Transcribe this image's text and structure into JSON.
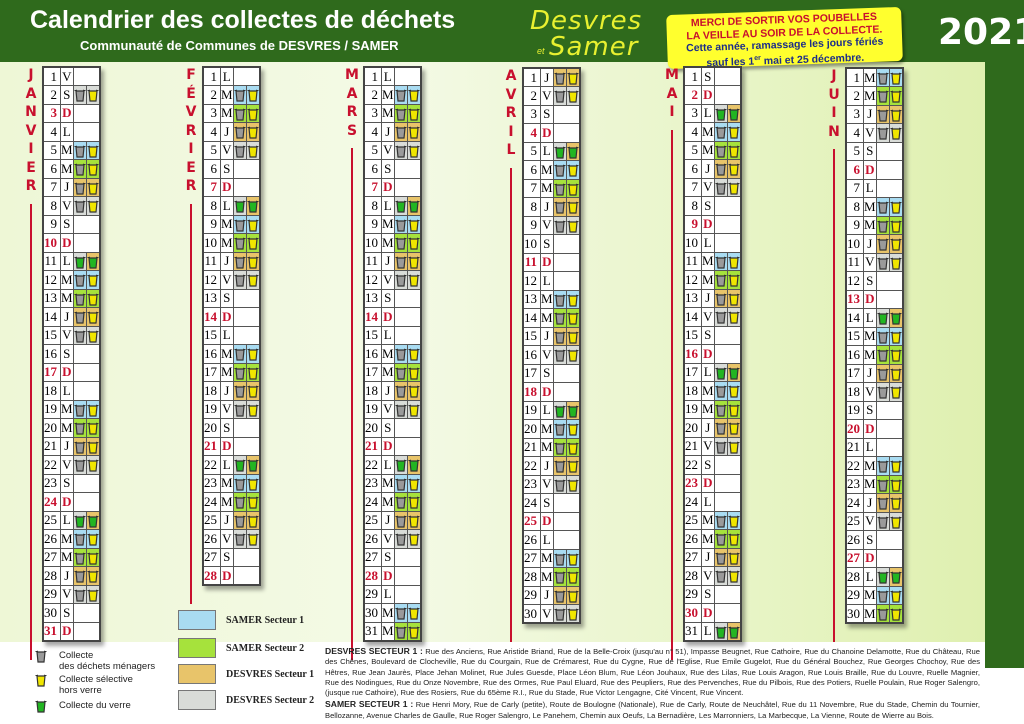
{
  "header": {
    "title": "Calendrier des collectes de déchets",
    "subtitle": "Communauté de Communes de DESVRES / SAMER",
    "logo": {
      "line1": "Desvres",
      "et": "et",
      "line2": "Samer"
    },
    "year": "2021",
    "note": {
      "line1": "MERCI DE SORTIR VOS POUBELLES",
      "line2": "LA VEILLE AU SOIR DE LA COLLECTE.",
      "line3": "Cette année, ramassage les jours fériés",
      "line4_pre": "sauf les 1",
      "line4_sup": "er",
      "line4_post": " mai et 25 décembre."
    }
  },
  "colors": {
    "s1": "#a9dcf2",
    "s2": "#a6e23c",
    "d1": "#e8c46a",
    "d2": "#d9dcd8",
    "sunday": "#c8102e",
    "bin_household": "#9a9a9a",
    "bin_selective": "#f0e600",
    "bin_glass": "#22b522"
  },
  "sector_codes": {
    "s1": "SAMER Secteur 1",
    "s2": "SAMER Secteur 2",
    "d1": "DESVRES Secteur 1",
    "d2": "DESVRES Secteur 2",
    "g": "Collecte du verre (DESVRES Secteur 2 / DESVRES Secteur 1)"
  },
  "months": [
    {
      "name": "JANVIER",
      "days": [
        [
          1,
          "V",
          ""
        ],
        [
          2,
          "S",
          "d2"
        ],
        [
          3,
          "D",
          ""
        ],
        [
          4,
          "L",
          ""
        ],
        [
          5,
          "M",
          "s1"
        ],
        [
          6,
          "M",
          "s2"
        ],
        [
          7,
          "J",
          "d1"
        ],
        [
          8,
          "V",
          "d2"
        ],
        [
          9,
          "S",
          ""
        ],
        [
          10,
          "D",
          ""
        ],
        [
          11,
          "L",
          "g"
        ],
        [
          12,
          "M",
          "s1"
        ],
        [
          13,
          "M",
          "s2"
        ],
        [
          14,
          "J",
          "d1"
        ],
        [
          15,
          "V",
          "d2"
        ],
        [
          16,
          "S",
          ""
        ],
        [
          17,
          "D",
          ""
        ],
        [
          18,
          "L",
          ""
        ],
        [
          19,
          "M",
          "s1"
        ],
        [
          20,
          "M",
          "s2"
        ],
        [
          21,
          "J",
          "d1"
        ],
        [
          22,
          "V",
          "d2"
        ],
        [
          23,
          "S",
          ""
        ],
        [
          24,
          "D",
          ""
        ],
        [
          25,
          "L",
          "g"
        ],
        [
          26,
          "M",
          "s1"
        ],
        [
          27,
          "M",
          "s2"
        ],
        [
          28,
          "J",
          "d1"
        ],
        [
          29,
          "V",
          "d2"
        ],
        [
          30,
          "S",
          ""
        ],
        [
          31,
          "D",
          ""
        ]
      ]
    },
    {
      "name": "FÉVRIER",
      "days": [
        [
          1,
          "L",
          ""
        ],
        [
          2,
          "M",
          "s1"
        ],
        [
          3,
          "M",
          "s2"
        ],
        [
          4,
          "J",
          "d1"
        ],
        [
          5,
          "V",
          "d2"
        ],
        [
          6,
          "S",
          ""
        ],
        [
          7,
          "D",
          ""
        ],
        [
          8,
          "L",
          "g"
        ],
        [
          9,
          "M",
          "s1"
        ],
        [
          10,
          "M",
          "s2"
        ],
        [
          11,
          "J",
          "d1"
        ],
        [
          12,
          "V",
          "d2"
        ],
        [
          13,
          "S",
          ""
        ],
        [
          14,
          "D",
          ""
        ],
        [
          15,
          "L",
          ""
        ],
        [
          16,
          "M",
          "s1"
        ],
        [
          17,
          "M",
          "s2"
        ],
        [
          18,
          "J",
          "d1"
        ],
        [
          19,
          "V",
          "d2"
        ],
        [
          20,
          "S",
          ""
        ],
        [
          21,
          "D",
          ""
        ],
        [
          22,
          "L",
          "g"
        ],
        [
          23,
          "M",
          "s1"
        ],
        [
          24,
          "M",
          "s2"
        ],
        [
          25,
          "J",
          "d1"
        ],
        [
          26,
          "V",
          "d2"
        ],
        [
          27,
          "S",
          ""
        ],
        [
          28,
          "D",
          ""
        ]
      ]
    },
    {
      "name": "MARS",
      "days": [
        [
          1,
          "L",
          ""
        ],
        [
          2,
          "M",
          "s1"
        ],
        [
          3,
          "M",
          "s2"
        ],
        [
          4,
          "J",
          "d1"
        ],
        [
          5,
          "V",
          "d2"
        ],
        [
          6,
          "S",
          ""
        ],
        [
          7,
          "D",
          ""
        ],
        [
          8,
          "L",
          "g"
        ],
        [
          9,
          "M",
          "s1"
        ],
        [
          10,
          "M",
          "s2"
        ],
        [
          11,
          "J",
          "d1"
        ],
        [
          12,
          "V",
          "d2"
        ],
        [
          13,
          "S",
          ""
        ],
        [
          14,
          "D",
          ""
        ],
        [
          15,
          "L",
          ""
        ],
        [
          16,
          "M",
          "s1"
        ],
        [
          17,
          "M",
          "s2"
        ],
        [
          18,
          "J",
          "d1"
        ],
        [
          19,
          "V",
          "d2"
        ],
        [
          20,
          "S",
          ""
        ],
        [
          21,
          "D",
          ""
        ],
        [
          22,
          "L",
          "g"
        ],
        [
          23,
          "M",
          "s1"
        ],
        [
          24,
          "M",
          "s2"
        ],
        [
          25,
          "J",
          "d1"
        ],
        [
          26,
          "V",
          "d2"
        ],
        [
          27,
          "S",
          ""
        ],
        [
          28,
          "D",
          ""
        ],
        [
          29,
          "L",
          ""
        ],
        [
          30,
          "M",
          "s1"
        ],
        [
          31,
          "M",
          "s2"
        ]
      ]
    },
    {
      "name": "AVRIL",
      "days": [
        [
          1,
          "J",
          "d1"
        ],
        [
          2,
          "V",
          "d2"
        ],
        [
          3,
          "S",
          ""
        ],
        [
          4,
          "D",
          ""
        ],
        [
          5,
          "L",
          "g"
        ],
        [
          6,
          "M",
          "s1"
        ],
        [
          7,
          "M",
          "s2"
        ],
        [
          8,
          "J",
          "d1"
        ],
        [
          9,
          "V",
          "d2"
        ],
        [
          10,
          "S",
          ""
        ],
        [
          11,
          "D",
          ""
        ],
        [
          12,
          "L",
          ""
        ],
        [
          13,
          "M",
          "s1"
        ],
        [
          14,
          "M",
          "s2"
        ],
        [
          15,
          "J",
          "d1"
        ],
        [
          16,
          "V",
          "d2"
        ],
        [
          17,
          "S",
          ""
        ],
        [
          18,
          "D",
          ""
        ],
        [
          19,
          "L",
          "g"
        ],
        [
          20,
          "M",
          "s1"
        ],
        [
          21,
          "M",
          "s2"
        ],
        [
          22,
          "J",
          "d1"
        ],
        [
          23,
          "V",
          "d2"
        ],
        [
          24,
          "S",
          ""
        ],
        [
          25,
          "D",
          ""
        ],
        [
          26,
          "L",
          ""
        ],
        [
          27,
          "M",
          "s1"
        ],
        [
          28,
          "M",
          "s2"
        ],
        [
          29,
          "J",
          "d1"
        ],
        [
          30,
          "V",
          "d2"
        ]
      ]
    },
    {
      "name": "MAI",
      "days": [
        [
          1,
          "S",
          ""
        ],
        [
          2,
          "D",
          ""
        ],
        [
          3,
          "L",
          "g"
        ],
        [
          4,
          "M",
          "s1"
        ],
        [
          5,
          "M",
          "s2"
        ],
        [
          6,
          "J",
          "d1"
        ],
        [
          7,
          "V",
          "d2"
        ],
        [
          8,
          "S",
          ""
        ],
        [
          9,
          "D",
          ""
        ],
        [
          10,
          "L",
          ""
        ],
        [
          11,
          "M",
          "s1"
        ],
        [
          12,
          "M",
          "s2"
        ],
        [
          13,
          "J",
          "d1"
        ],
        [
          14,
          "V",
          "d2"
        ],
        [
          15,
          "S",
          ""
        ],
        [
          16,
          "D",
          ""
        ],
        [
          17,
          "L",
          "g"
        ],
        [
          18,
          "M",
          "s1"
        ],
        [
          19,
          "M",
          "s2"
        ],
        [
          20,
          "J",
          "d1"
        ],
        [
          21,
          "V",
          "d2"
        ],
        [
          22,
          "S",
          ""
        ],
        [
          23,
          "D",
          ""
        ],
        [
          24,
          "L",
          ""
        ],
        [
          25,
          "M",
          "s1"
        ],
        [
          26,
          "M",
          "s2"
        ],
        [
          27,
          "J",
          "d1"
        ],
        [
          28,
          "V",
          "d2"
        ],
        [
          29,
          "S",
          ""
        ],
        [
          30,
          "D",
          ""
        ],
        [
          31,
          "L",
          "g"
        ]
      ]
    },
    {
      "name": "JUIN",
      "days": [
        [
          1,
          "M",
          "s1"
        ],
        [
          2,
          "M",
          "s2"
        ],
        [
          3,
          "J",
          "d1"
        ],
        [
          4,
          "V",
          "d2"
        ],
        [
          5,
          "S",
          ""
        ],
        [
          6,
          "D",
          ""
        ],
        [
          7,
          "L",
          ""
        ],
        [
          8,
          "M",
          "s1"
        ],
        [
          9,
          "M",
          "s2"
        ],
        [
          10,
          "J",
          "d1"
        ],
        [
          11,
          "V",
          "d2"
        ],
        [
          12,
          "S",
          ""
        ],
        [
          13,
          "D",
          ""
        ],
        [
          14,
          "L",
          "g"
        ],
        [
          15,
          "M",
          "s1"
        ],
        [
          16,
          "M",
          "s2"
        ],
        [
          17,
          "J",
          "d1"
        ],
        [
          18,
          "V",
          "d2"
        ],
        [
          19,
          "S",
          ""
        ],
        [
          20,
          "D",
          ""
        ],
        [
          21,
          "L",
          ""
        ],
        [
          22,
          "M",
          "s1"
        ],
        [
          23,
          "M",
          "s2"
        ],
        [
          24,
          "J",
          "d1"
        ],
        [
          25,
          "V",
          "d2"
        ],
        [
          26,
          "S",
          ""
        ],
        [
          27,
          "D",
          ""
        ],
        [
          28,
          "L",
          "g"
        ],
        [
          29,
          "M",
          "s1"
        ],
        [
          30,
          "M",
          "s2"
        ]
      ]
    }
  ],
  "legend": {
    "household": {
      "line1": "Collecte",
      "line2": "des déchets ménagers"
    },
    "selective": {
      "line1": "Collecte sélective",
      "line2": "hors verre"
    },
    "glass": {
      "line1": "Collecte du verre"
    },
    "sectors": [
      "SAMER Secteur 1",
      "SAMER Secteur 2",
      "DESVRES Secteur 1",
      "DESVRES Secteur 2"
    ]
  },
  "streets": {
    "desvres_label": "DESVRES SECTEUR 1 :",
    "desvres_text": "Rue des Anciens, Rue Aristide Briand, Rue de la Belle-Croix (jusqu'au n° 51), Impasse Beugnet, Rue Cathoire, Rue du Chanoine Delamotte, Rue du Château, Rue des Chênes, Boulevard de Clocheville, Rue du Courgain, Rue de Crémarest, Rue du Cygne, Rue de l'Eglise, Rue Emile Gugelot, Rue du Général Bouchez, Rue Georges Chochoy, Rue des Hêtres, Rue Jean Jaurès, Place Jehan Molinet, Rue Jules Guesde, Place Léon Blum, Rue Léon Jouhaux, Rue des Lilas, Rue Louis Aragon, Rue Louis Braille, Rue du Louvre, Ruelle Magnier, Rue des Nodingues, Rue du Onze Novembre, Rue des Ormes, Rue Paul Eluard, Rue des Peupliers, Rue des Pervenches, Rue du Pilbois, Rue des Potiers, Ruelle Poulain, Rue Roger Salengro, (jusque rue Cathoire), Rue des Rosiers, Rue du 65ème R.I., Rue du Stade, Rue Victor Lengagne, Cité Vincent, Rue Vincent.",
    "samer_label": "SAMER SECTEUR 1 :",
    "samer_text": "Rue Henri Mory, Rue de Carly (petite), Route de Boulogne (Nationale), Rue de Carly, Route de Neuchâtel, Rue du 11 Novembre, Rue du Stade, Chemin du Tournier, Bellozanne, Avenue Charles de Gaulle, Rue Roger Salengro, Le Panehem, Chemin aux Oeufs, La Bernadière, Les Marronniers, La Marbecque, La Vienne, Route de Wierre au Bois."
  }
}
